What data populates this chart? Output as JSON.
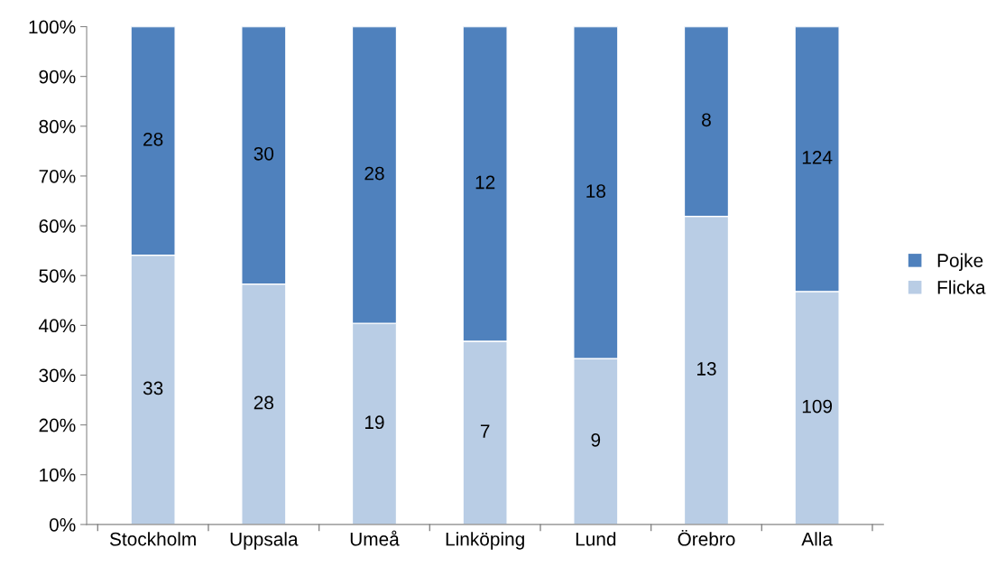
{
  "chart_data": {
    "type": "bar",
    "stacked": true,
    "categories": [
      "Stockholm",
      "Uppsala",
      "Umeå",
      "Linköping",
      "Lund",
      "Örebro",
      "Alla"
    ],
    "series": [
      {
        "name": "Flicka",
        "color": "#b9cde5",
        "values": [
          54.1,
          48.3,
          40.4,
          36.8,
          33.3,
          61.9,
          46.8
        ]
      },
      {
        "name": "Pojke",
        "color": "#4f81bd",
        "values": [
          45.9,
          51.7,
          59.6,
          63.2,
          66.7,
          38.1,
          53.2
        ]
      }
    ],
    "annotations": [
      "33",
      "28",
      "19",
      "7",
      "9",
      "13",
      "109",
      "28",
      "30",
      "28",
      "12",
      "18",
      "8",
      "124"
    ],
    "ylim": [
      0,
      100
    ],
    "yticks": [
      {
        "value": 0,
        "label": "0%"
      },
      {
        "value": 10,
        "label": "10%"
      },
      {
        "value": 20,
        "label": "20%"
      },
      {
        "value": 30,
        "label": "30%"
      },
      {
        "value": 40,
        "label": "40%"
      },
      {
        "value": 50,
        "label": "50%"
      },
      {
        "value": 60,
        "label": "60%"
      },
      {
        "value": 70,
        "label": "70%"
      },
      {
        "value": 80,
        "label": "80%"
      },
      {
        "value": 90,
        "label": "90%"
      },
      {
        "value": 100,
        "label": "100%"
      }
    ],
    "grid": false,
    "legend": "right"
  }
}
